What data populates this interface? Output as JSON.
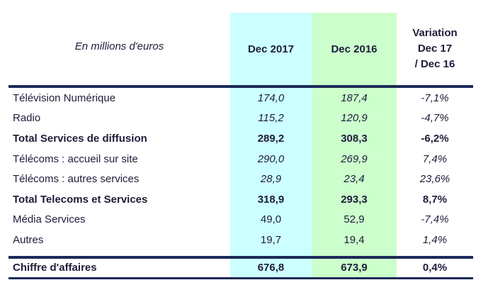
{
  "header": {
    "caption": "En millions d'euros",
    "col_2017": "Dec 2017",
    "col_2016": "Dec 2016",
    "variation": [
      "Variation",
      "Dec 17",
      "/ Dec 16"
    ]
  },
  "table": {
    "rows": [
      [
        "Télévision Numérique",
        "174,0",
        "187,4",
        "-7,1%"
      ],
      [
        "Radio",
        "115,2",
        "120,9",
        "-4,7%"
      ],
      [
        "Total Services de diffusion",
        "289,2",
        "308,3",
        "-6,2%"
      ],
      [
        "Télécoms : accueil sur site",
        "290,0",
        "269,9",
        "7,4%"
      ],
      [
        "Télécoms : autres services",
        "28,9",
        "23,4",
        "23,6%"
      ],
      [
        "Total Telecoms et Services",
        "318,9",
        "293,3",
        "8,7%"
      ],
      [
        "Média Services",
        "49,0",
        "52,9",
        "-7,4%"
      ],
      [
        "Autres",
        "19,7",
        "19,4",
        "1,4%"
      ]
    ],
    "total": [
      "Chiffre d'affaires",
      "676,8",
      "673,9",
      "0,4%"
    ]
  }
}
